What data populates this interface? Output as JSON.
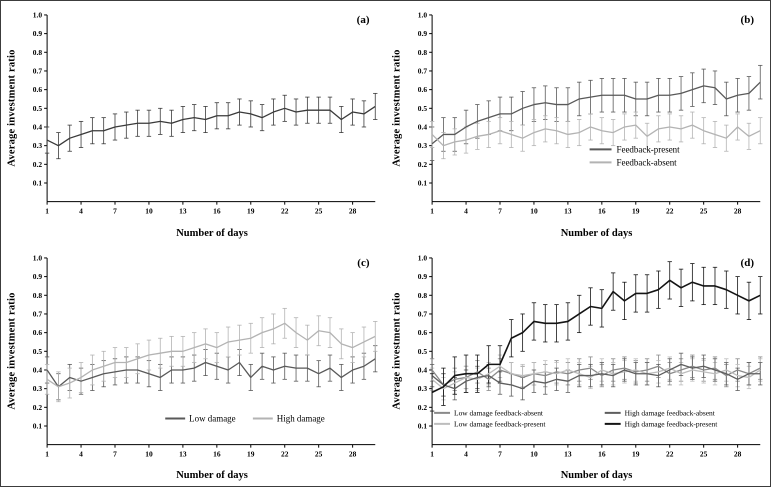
{
  "figure": {
    "background": "#ffffff",
    "border_color": "#3c3c3c"
  },
  "chart_data": [
    {
      "type": "line",
      "panel_label": "(a)",
      "xlabel": "Number of days",
      "ylabel": "Average investment ratio",
      "xlim": [
        1,
        30
      ],
      "ylim": [
        0,
        1.0
      ],
      "x_ticks": [
        1,
        4,
        7,
        10,
        13,
        16,
        19,
        22,
        25,
        28
      ],
      "y_ticks": [
        0.1,
        0.2,
        0.3,
        0.4,
        0.5,
        0.6,
        0.7,
        0.8,
        0.9,
        1.0
      ],
      "grid": false,
      "error_bars": true,
      "x": [
        1,
        2,
        3,
        4,
        5,
        6,
        7,
        8,
        9,
        10,
        11,
        12,
        13,
        14,
        15,
        16,
        17,
        18,
        19,
        20,
        21,
        22,
        23,
        24,
        25,
        26,
        27,
        28,
        29,
        30
      ],
      "series": [
        {
          "name": "",
          "color": "#3a3a3a",
          "error": 0.07,
          "values": [
            0.33,
            0.3,
            0.34,
            0.36,
            0.38,
            0.38,
            0.4,
            0.41,
            0.42,
            0.42,
            0.43,
            0.42,
            0.44,
            0.45,
            0.44,
            0.46,
            0.46,
            0.48,
            0.47,
            0.45,
            0.48,
            0.5,
            0.48,
            0.49,
            0.49,
            0.49,
            0.44,
            0.48,
            0.47,
            0.51
          ]
        }
      ],
      "legend": null
    },
    {
      "type": "line",
      "panel_label": "(b)",
      "xlabel": "Number of days",
      "ylabel": "Average investment ratio",
      "xlim": [
        1,
        30
      ],
      "ylim": [
        0,
        1.0
      ],
      "x_ticks": [
        1,
        4,
        7,
        10,
        13,
        16,
        19,
        22,
        25,
        28
      ],
      "y_ticks": [
        0.1,
        0.2,
        0.3,
        0.4,
        0.5,
        0.6,
        0.7,
        0.8,
        0.9,
        1.0
      ],
      "grid": false,
      "error_bars": true,
      "x": [
        1,
        2,
        3,
        4,
        5,
        6,
        7,
        8,
        9,
        10,
        11,
        12,
        13,
        14,
        15,
        16,
        17,
        18,
        19,
        20,
        21,
        22,
        23,
        24,
        25,
        26,
        27,
        28,
        29,
        30
      ],
      "series": [
        {
          "name": "Feedback-present",
          "color": "#595959",
          "error": 0.09,
          "values": [
            0.31,
            0.36,
            0.36,
            0.4,
            0.43,
            0.45,
            0.47,
            0.47,
            0.5,
            0.52,
            0.53,
            0.52,
            0.52,
            0.55,
            0.56,
            0.57,
            0.57,
            0.57,
            0.55,
            0.55,
            0.57,
            0.57,
            0.58,
            0.6,
            0.62,
            0.61,
            0.55,
            0.57,
            0.58,
            0.64
          ]
        },
        {
          "name": "Feedback-absent",
          "color": "#b3b3b3",
          "error": 0.07,
          "values": [
            0.36,
            0.3,
            0.32,
            0.33,
            0.35,
            0.36,
            0.38,
            0.36,
            0.34,
            0.37,
            0.39,
            0.38,
            0.36,
            0.37,
            0.4,
            0.38,
            0.37,
            0.4,
            0.41,
            0.35,
            0.39,
            0.4,
            0.39,
            0.41,
            0.38,
            0.36,
            0.34,
            0.4,
            0.35,
            0.38
          ]
        }
      ],
      "legend": {
        "layout": "vertical",
        "fx": 0.48,
        "fy": 0.72,
        "font_size": 9
      }
    },
    {
      "type": "line",
      "panel_label": "(c)",
      "xlabel": "Number of days",
      "ylabel": "Average investment ratio",
      "xlim": [
        1,
        30
      ],
      "ylim": [
        0,
        1.0
      ],
      "x_ticks": [
        1,
        4,
        7,
        10,
        13,
        16,
        19,
        22,
        25,
        28
      ],
      "y_ticks": [
        0.1,
        0.2,
        0.3,
        0.4,
        0.5,
        0.6,
        0.7,
        0.8,
        0.9,
        1.0
      ],
      "grid": false,
      "error_bars": true,
      "x": [
        1,
        2,
        3,
        4,
        5,
        6,
        7,
        8,
        9,
        10,
        11,
        12,
        13,
        14,
        15,
        16,
        17,
        18,
        19,
        20,
        21,
        22,
        23,
        24,
        25,
        26,
        27,
        28,
        29,
        30
      ],
      "series": [
        {
          "name": "Low damage",
          "color": "#595959",
          "error": 0.07,
          "values": [
            0.4,
            0.31,
            0.36,
            0.34,
            0.36,
            0.38,
            0.39,
            0.4,
            0.4,
            0.38,
            0.36,
            0.4,
            0.4,
            0.41,
            0.44,
            0.42,
            0.4,
            0.44,
            0.36,
            0.42,
            0.4,
            0.42,
            0.41,
            0.41,
            0.38,
            0.41,
            0.36,
            0.4,
            0.42,
            0.46
          ]
        },
        {
          "name": "High damage",
          "color": "#b3b3b3",
          "error": 0.08,
          "values": [
            0.35,
            0.31,
            0.33,
            0.36,
            0.4,
            0.42,
            0.44,
            0.44,
            0.46,
            0.48,
            0.49,
            0.5,
            0.5,
            0.52,
            0.54,
            0.52,
            0.55,
            0.56,
            0.57,
            0.6,
            0.62,
            0.65,
            0.6,
            0.56,
            0.61,
            0.6,
            0.54,
            0.52,
            0.55,
            0.58
          ]
        }
      ],
      "legend": {
        "layout": "horizontal",
        "fx": 0.36,
        "fy": 0.86,
        "font_size": 9
      }
    },
    {
      "type": "line",
      "panel_label": "(d)",
      "xlabel": "Number of days",
      "ylabel": "Average investment ratio",
      "xlim": [
        1,
        30
      ],
      "ylim": [
        0,
        1.0
      ],
      "x_ticks": [
        1,
        4,
        7,
        10,
        13,
        16,
        19,
        22,
        25,
        28
      ],
      "y_ticks": [
        0.1,
        0.2,
        0.3,
        0.4,
        0.5,
        0.6,
        0.7,
        0.8,
        0.9,
        1.0
      ],
      "grid": false,
      "error_bars": true,
      "x": [
        1,
        2,
        3,
        4,
        5,
        6,
        7,
        8,
        9,
        10,
        11,
        12,
        13,
        14,
        15,
        16,
        17,
        18,
        19,
        20,
        21,
        22,
        23,
        24,
        25,
        26,
        27,
        28,
        29,
        30
      ],
      "series": [
        {
          "name": "Low damage feedback-absent",
          "color": "#8a8a8a",
          "error": 0.06,
          "values": [
            0.4,
            0.32,
            0.35,
            0.36,
            0.39,
            0.35,
            0.4,
            0.38,
            0.36,
            0.38,
            0.37,
            0.39,
            0.38,
            0.4,
            0.41,
            0.37,
            0.4,
            0.41,
            0.39,
            0.4,
            0.42,
            0.38,
            0.4,
            0.42,
            0.4,
            0.41,
            0.37,
            0.4,
            0.38,
            0.41
          ]
        },
        {
          "name": "Low damage feedback-present",
          "color": "#bdbdbd",
          "error": 0.06,
          "values": [
            0.35,
            0.3,
            0.33,
            0.36,
            0.35,
            0.38,
            0.42,
            0.38,
            0.37,
            0.38,
            0.39,
            0.38,
            0.4,
            0.38,
            0.36,
            0.4,
            0.38,
            0.39,
            0.4,
            0.38,
            0.39,
            0.41,
            0.38,
            0.4,
            0.39,
            0.38,
            0.4,
            0.37,
            0.36,
            0.4
          ]
        },
        {
          "name": "High damage feedback-absent",
          "color": "#5e5e5e",
          "error": 0.06,
          "values": [
            0.37,
            0.32,
            0.3,
            0.34,
            0.36,
            0.37,
            0.33,
            0.32,
            0.3,
            0.34,
            0.33,
            0.35,
            0.34,
            0.37,
            0.37,
            0.38,
            0.37,
            0.4,
            0.38,
            0.38,
            0.37,
            0.4,
            0.43,
            0.41,
            0.42,
            0.4,
            0.38,
            0.35,
            0.38,
            0.38
          ]
        },
        {
          "name": "High damage feedback-present",
          "color": "#141414",
          "error": 0.1,
          "width": 1.6,
          "values": [
            0.28,
            0.31,
            0.37,
            0.38,
            0.38,
            0.43,
            0.43,
            0.57,
            0.6,
            0.66,
            0.65,
            0.65,
            0.66,
            0.7,
            0.74,
            0.73,
            0.82,
            0.77,
            0.81,
            0.81,
            0.83,
            0.88,
            0.84,
            0.87,
            0.85,
            0.85,
            0.83,
            0.8,
            0.77,
            0.8
          ]
        }
      ],
      "legend": {
        "layout": "grid",
        "fx": 0.0,
        "fy": 0.83,
        "font_size": 7.5
      }
    }
  ]
}
